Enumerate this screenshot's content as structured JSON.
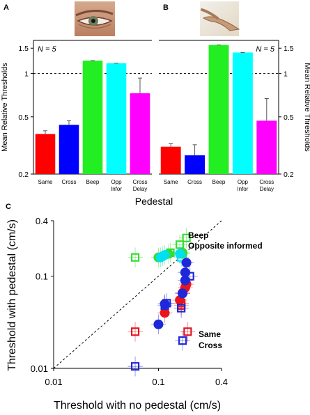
{
  "panel_labels": [
    "A",
    "B",
    "C"
  ],
  "pictures": {
    "a": "eye-photo",
    "b": "hand-photo"
  },
  "x_caption": "Pedestal",
  "chart_data": [
    {
      "type": "bar",
      "panel": "A",
      "categories": [
        "Same",
        "Cross",
        "Beep",
        "Opp\nInfor",
        "Cross\nDelay"
      ],
      "values": [
        0.38,
        0.44,
        1.23,
        1.18,
        0.73
      ],
      "errors": [
        0.02,
        0.03,
        0.0,
        0.0,
        0.2
      ],
      "colors": [
        "#ff0000",
        "#0000ff",
        "#22ee22",
        "#00ffff",
        "#ff00ff"
      ],
      "ylabel": "Mean Relative Thresholds",
      "yscale": "log",
      "ylim": [
        0.2,
        1.7
      ],
      "yticks": [
        "0.2",
        "0.5",
        "1",
        "1.5"
      ],
      "ytick_values": [
        0.2,
        0.5,
        1,
        1.5
      ],
      "reference_line": 1,
      "annotation": "N = 5"
    },
    {
      "type": "bar",
      "panel": "B",
      "categories": [
        "Same",
        "Cross",
        "Beep",
        "Opp\nInfor",
        "Cross\nDelay"
      ],
      "values": [
        0.31,
        0.27,
        1.58,
        1.4,
        0.47
      ],
      "errors": [
        0.015,
        0.05,
        0.0,
        0.0,
        0.2
      ],
      "colors": [
        "#ff0000",
        "#0000ff",
        "#22ee22",
        "#00ffff",
        "#ff00ff"
      ],
      "ylabel": "Mean Relative Thresholds",
      "yscale": "log",
      "ylim": [
        0.2,
        1.7
      ],
      "yticks": [
        "0.2",
        "0.5",
        "1",
        "1.5"
      ],
      "ytick_values": [
        0.2,
        0.5,
        1,
        1.5
      ],
      "reference_line": 1,
      "annotation": "N = 5"
    },
    {
      "type": "scatter",
      "panel": "C",
      "xlabel": "Threshold with no pedestal (cm/s)",
      "ylabel": "Threshold with pedestal (cm/s)",
      "xscale": "log",
      "yscale": "log",
      "xlim": [
        0.01,
        0.4
      ],
      "ylim": [
        0.01,
        0.4
      ],
      "xticks": [
        "0.01",
        "0.1",
        "0.4"
      ],
      "yticks": [
        "0.01",
        "0.1",
        "0.4"
      ],
      "tick_values": [
        0.01,
        0.1,
        0.4
      ],
      "diagonal": true,
      "series": [
        {
          "name": "Beep",
          "color": "#33dd33",
          "marker": "filled",
          "points": [
            [
              0.1,
              0.16
            ],
            [
              0.11,
              0.165
            ],
            [
              0.125,
              0.175
            ],
            [
              0.17,
              0.175
            ],
            [
              0.17,
              0.18
            ]
          ]
        },
        {
          "name": "Beep",
          "color": "#33dd33",
          "marker": "open",
          "points": [
            [
              0.06,
              0.16
            ],
            [
              0.13,
              0.18
            ],
            [
              0.16,
              0.22
            ],
            [
              0.185,
              0.26
            ]
          ]
        },
        {
          "name": "Opposite informed",
          "color": "#00e0f0",
          "marker": "filled",
          "points": [
            [
              0.105,
              0.16
            ],
            [
              0.115,
              0.17
            ],
            [
              0.16,
              0.175
            ]
          ]
        },
        {
          "name": "Opposite informed",
          "color": "#00e0f0",
          "marker": "open",
          "points": [
            [
              0.165,
              0.16
            ]
          ]
        },
        {
          "name": "Same",
          "color": "#e8141e",
          "marker": "filled",
          "points": [
            [
              0.115,
              0.04
            ],
            [
              0.16,
              0.055
            ],
            [
              0.17,
              0.066
            ],
            [
              0.18,
              0.075
            ],
            [
              0.185,
              0.082
            ]
          ]
        },
        {
          "name": "Same",
          "color": "#e8141e",
          "marker": "open",
          "points": [
            [
              0.06,
              0.025
            ],
            [
              0.19,
              0.025
            ],
            [
              0.165,
              0.048
            ],
            [
              0.165,
              0.051
            ]
          ]
        },
        {
          "name": "Cross",
          "color": "#1e28d8",
          "marker": "filled",
          "points": [
            [
              0.1,
              0.03
            ],
            [
              0.115,
              0.05
            ],
            [
              0.17,
              0.065
            ],
            [
              0.18,
              0.09
            ],
            [
              0.18,
              0.11
            ],
            [
              0.185,
              0.14
            ]
          ]
        },
        {
          "name": "Cross",
          "color": "#1e28d8",
          "marker": "open",
          "points": [
            [
              0.06,
              0.0105
            ],
            [
              0.115,
              0.048
            ],
            [
              0.12,
              0.051
            ],
            [
              0.165,
              0.045
            ],
            [
              0.17,
              0.02
            ],
            [
              0.2,
              0.1
            ]
          ]
        }
      ],
      "legend_labels": [
        "Beep",
        "Opposite informed",
        "Same",
        "Cross"
      ]
    }
  ]
}
